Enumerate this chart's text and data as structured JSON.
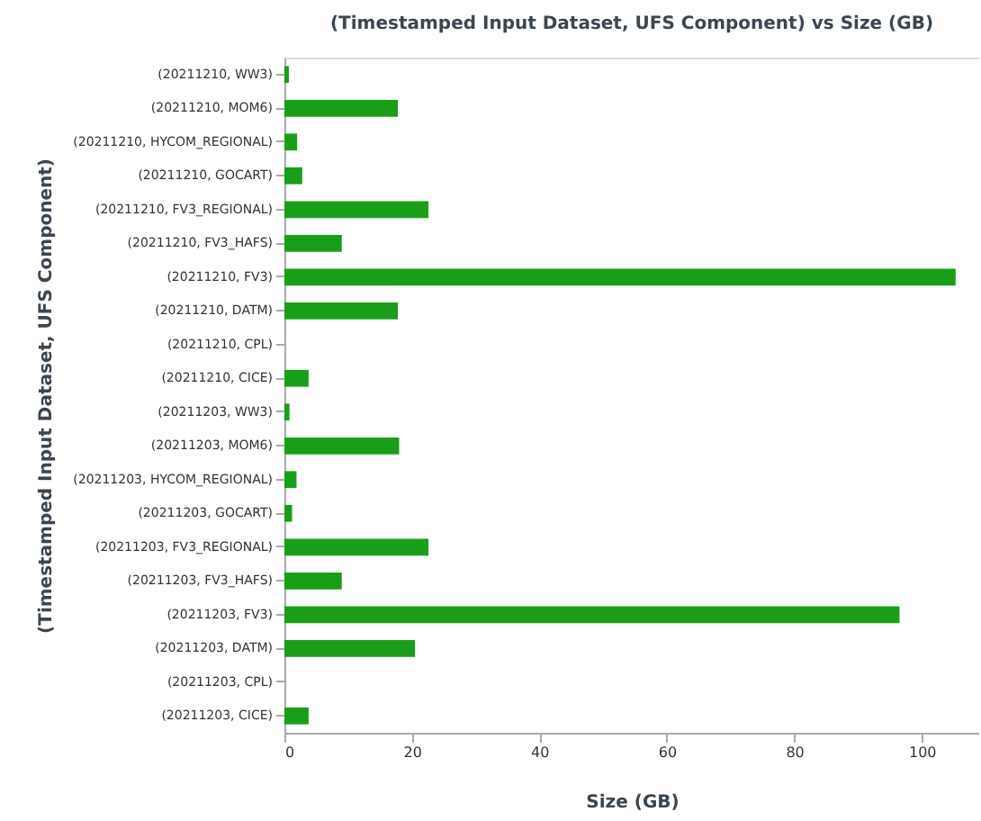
{
  "chart_data": {
    "type": "bar",
    "orientation": "horizontal",
    "title": "(Timestamped Input Dataset, UFS Component) vs Size (GB)",
    "xlabel": "Size (GB)",
    "ylabel": "(Timestamped Input Dataset, UFS Component)",
    "categories": [
      "(20211210, WW3)",
      "(20211210, MOM6)",
      "(20211210, HYCOM_REGIONAL)",
      "(20211210, GOCART)",
      "(20211210, FV3_REGIONAL)",
      "(20211210, FV3_HAFS)",
      "(20211210, FV3)",
      "(20211210, DATM)",
      "(20211210, CPL)",
      "(20211210, CICE)",
      "(20211203, WW3)",
      "(20211203, MOM6)",
      "(20211203, HYCOM_REGIONAL)",
      "(20211203, GOCART)",
      "(20211203, FV3_REGIONAL)",
      "(20211203, FV3_HAFS)",
      "(20211203, FV3)",
      "(20211203, DATM)",
      "(20211203, CPL)",
      "(20211203, CICE)"
    ],
    "values": [
      0.7,
      17.8,
      2,
      2.8,
      22.6,
      9,
      105.3,
      17.8,
      0,
      3.8,
      0.8,
      18,
      1.9,
      1.2,
      22.6,
      9,
      96.5,
      20.5,
      0,
      3.8
    ],
    "color": "#1a9e1a",
    "xlim": [
      0,
      109
    ],
    "xticks": [
      0,
      20,
      40,
      60,
      80,
      100
    ],
    "grid": false
  }
}
